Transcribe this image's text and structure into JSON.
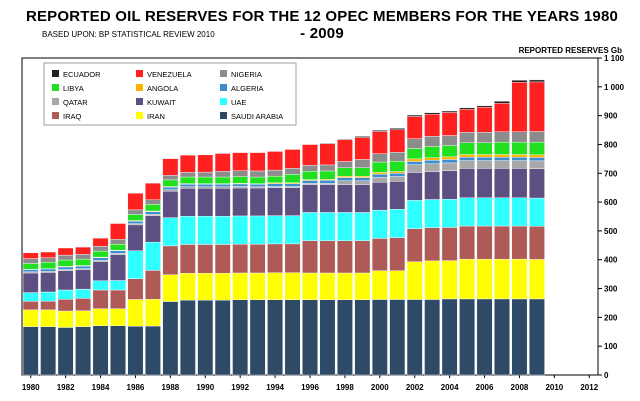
{
  "title": "REPORTED OIL RESERVES FOR THE 12 OPEC MEMBERS FOR THE YEARS 1980 - 2009",
  "subtitle": "BASED UPON: BP STATISTICAL REVIEW 2010",
  "chart_data": {
    "type": "bar",
    "stacked": true,
    "title": "REPORTED OIL RESERVES FOR THE 12 OPEC MEMBERS FOR THE YEARS 1980 - 2009",
    "subtitle": "BASED UPON: BP STATISTICAL REVIEW 2010",
    "ylabel": "REPORTED RESERVES Gb",
    "xlabel": "",
    "ylim": [
      0,
      1100
    ],
    "yticks": [
      0,
      100,
      200,
      300,
      400,
      500,
      600,
      700,
      800,
      900,
      1000,
      1100
    ],
    "ytick_labels": [
      "0",
      "100",
      "200",
      "300",
      "400",
      "500",
      "600",
      "700",
      "800",
      "900",
      "1 000",
      "1 100"
    ],
    "xlim": [
      1979.5,
      2012.5
    ],
    "xticks": [
      1980,
      1982,
      1984,
      1986,
      1988,
      1990,
      1992,
      1994,
      1996,
      1998,
      2000,
      2002,
      2004,
      2006,
      2008,
      2010,
      2012
    ],
    "legend_position": "top-left",
    "grid": false,
    "years": [
      1980,
      1981,
      1982,
      1983,
      1984,
      1985,
      1986,
      1987,
      1988,
      1989,
      1990,
      1991,
      1992,
      1993,
      1994,
      1995,
      1996,
      1997,
      1998,
      1999,
      2000,
      2001,
      2002,
      2003,
      2004,
      2005,
      2006,
      2007,
      2008,
      2009
    ],
    "series": [
      {
        "name": "SAUDI ARABIA",
        "color": "#2e4a66",
        "values": [
          168,
          168,
          165,
          168,
          171,
          171,
          169,
          170,
          255,
          260,
          260,
          260,
          261,
          261,
          261,
          261,
          261,
          261,
          261,
          261,
          262,
          262,
          262,
          262,
          264,
          264,
          264,
          264,
          264,
          264
        ]
      },
      {
        "name": "IRAN",
        "color": "#ffff00",
        "values": [
          58,
          58,
          57,
          55,
          59,
          59,
          93,
          93,
          93,
          93,
          93,
          93,
          93,
          93,
          94,
          94,
          93,
          93,
          93,
          93,
          100,
          100,
          131,
          134,
          133,
          138,
          138,
          138,
          138,
          137
        ]
      },
      {
        "name": "IRAQ",
        "color": "#b05a57",
        "values": [
          30,
          30,
          41,
          43,
          65,
          65,
          72,
          100,
          100,
          100,
          100,
          100,
          100,
          100,
          100,
          100,
          112,
          112,
          112,
          112,
          112,
          115,
          115,
          115,
          115,
          115,
          115,
          115,
          115,
          115
        ]
      },
      {
        "name": "UAE",
        "color": "#30ffff",
        "values": [
          30,
          32,
          32,
          32,
          32,
          33,
          97,
          98,
          98,
          98,
          98,
          98,
          98,
          98,
          98,
          98,
          98,
          98,
          98,
          98,
          98,
          98,
          98,
          98,
          98,
          98,
          98,
          98,
          98,
          98
        ]
      },
      {
        "name": "KUWAIT",
        "color": "#5e4f82",
        "values": [
          68,
          68,
          67,
          67,
          67,
          90,
          90,
          92,
          92,
          97,
          97,
          97,
          97,
          97,
          97,
          97,
          97,
          97,
          97,
          97,
          97,
          97,
          97,
          97,
          99,
          102,
          102,
          102,
          102,
          102
        ]
      },
      {
        "name": "QATAR",
        "color": "#a8a8a8",
        "values": [
          4,
          4,
          4,
          4,
          4,
          4,
          4,
          5,
          5,
          5,
          5,
          5,
          5,
          4,
          4,
          4,
          4,
          4,
          13,
          13,
          17,
          17,
          27,
          27,
          27,
          27,
          27,
          27,
          27,
          27
        ]
      },
      {
        "name": "ALGERIA",
        "color": "#3d8ed0",
        "values": [
          8,
          8,
          9,
          9,
          9,
          9,
          9,
          9,
          9,
          9,
          9,
          9,
          9,
          9,
          10,
          10,
          10,
          11,
          11,
          11,
          11,
          11,
          11,
          12,
          12,
          12,
          12,
          12,
          12,
          12
        ]
      },
      {
        "name": "ANGOLA",
        "color": "#ffb300",
        "values": [
          1,
          1,
          2,
          2,
          2,
          2,
          2,
          2,
          2,
          2,
          2,
          2,
          2,
          2,
          3,
          3,
          3,
          3,
          5,
          5,
          6,
          6,
          9,
          9,
          9,
          9,
          9,
          9,
          9,
          9
        ]
      },
      {
        "name": "LIBYA",
        "color": "#20e020",
        "values": [
          20,
          22,
          22,
          22,
          21,
          21,
          21,
          23,
          23,
          23,
          23,
          23,
          23,
          23,
          23,
          29,
          29,
          29,
          29,
          29,
          36,
          36,
          36,
          39,
          39,
          41,
          41,
          43,
          43,
          44
        ]
      },
      {
        "name": "NIGERIA",
        "color": "#8c8c8c",
        "values": [
          17,
          16,
          17,
          17,
          17,
          17,
          16,
          16,
          16,
          16,
          17,
          20,
          21,
          21,
          21,
          21,
          21,
          21,
          22,
          29,
          29,
          31,
          34,
          35,
          35,
          36,
          36,
          36,
          36,
          37
        ]
      },
      {
        "name": "VENEZUELA",
        "color": "#ff2020",
        "values": [
          20,
          20,
          25,
          25,
          28,
          55,
          58,
          58,
          58,
          60,
          60,
          62,
          63,
          64,
          65,
          66,
          72,
          74,
          76,
          76,
          77,
          78,
          77,
          77,
          80,
          80,
          87,
          99,
          172,
          172
        ]
      },
      {
        "name": "ECUADOR",
        "color": "#222222",
        "values": [
          1,
          1,
          1,
          1,
          1,
          1,
          1,
          1,
          1,
          1,
          1,
          1,
          1,
          1,
          1,
          1,
          1,
          2,
          2,
          4,
          4,
          5,
          5,
          5,
          5,
          5,
          5,
          7,
          7,
          7
        ]
      }
    ]
  }
}
